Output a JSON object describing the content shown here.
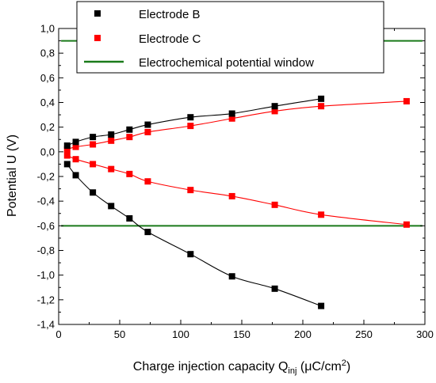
{
  "chart_data": {
    "type": "scatter",
    "xlabel": "Charge injection capacity Q",
    "xlabel_sub": "inj",
    "xlabel_unit_open": " (",
    "xlabel_unit_mu": "μ",
    "xlabel_unit_rest": "C/cm",
    "xlabel_unit_sup": "2",
    "xlabel_unit_close": ")",
    "ylabel": "Potential U (V)",
    "xlim": [
      0,
      300
    ],
    "ylim": [
      -1.4,
      1.0
    ],
    "x_ticks": [
      0,
      50,
      100,
      150,
      200,
      250,
      300
    ],
    "y_ticks": [
      -1.4,
      -1.2,
      -1.0,
      -0.8,
      -0.6,
      -0.4,
      -0.2,
      0.0,
      0.2,
      0.4,
      0.6,
      0.8,
      1.0
    ],
    "x_tick_labels": [
      "0",
      "50",
      "100",
      "150",
      "200",
      "250",
      "300"
    ],
    "y_tick_labels": [
      "-1,4",
      "-1,2",
      "-1,0",
      "-0,8",
      "-0,6",
      "-0,4",
      "-0,2",
      "0,0",
      "0,2",
      "0,4",
      "0,6",
      "0,8",
      "1,0"
    ],
    "grid": false,
    "legend_position": "top",
    "series": [
      {
        "name": "Electrode B",
        "color": "#000000",
        "marker": "square",
        "branches": [
          {
            "x": [
              7,
              14,
              28,
              43,
              58,
              73,
              108,
              142,
              177,
              215
            ],
            "y": [
              0.05,
              0.08,
              0.12,
              0.14,
              0.18,
              0.22,
              0.28,
              0.31,
              0.37,
              0.43
            ]
          },
          {
            "x": [
              7,
              14,
              28,
              43,
              58,
              73,
              108,
              142,
              177,
              215
            ],
            "y": [
              -0.1,
              -0.19,
              -0.33,
              -0.44,
              -0.54,
              -0.65,
              -0.83,
              -1.01,
              -1.11,
              -1.25
            ]
          }
        ]
      },
      {
        "name": "Electrode C",
        "color": "#ff0000",
        "marker": "square",
        "branches": [
          {
            "x": [
              7,
              14,
              28,
              43,
              58,
              73,
              108,
              142,
              177,
              215,
              285
            ],
            "y": [
              0.02,
              0.04,
              0.06,
              0.09,
              0.12,
              0.16,
              0.21,
              0.27,
              0.33,
              0.37,
              0.41
            ]
          },
          {
            "x": [
              7,
              14,
              28,
              43,
              58,
              73,
              108,
              142,
              177,
              215,
              285
            ],
            "y": [
              -0.03,
              -0.06,
              -0.1,
              -0.14,
              -0.18,
              -0.24,
              -0.31,
              -0.36,
              -0.43,
              -0.51,
              -0.59
            ]
          }
        ]
      },
      {
        "name": "Electrochemical potential window",
        "color": "#1a7a1a",
        "marker": "none",
        "lines": [
          0.9,
          -0.6
        ]
      }
    ]
  }
}
